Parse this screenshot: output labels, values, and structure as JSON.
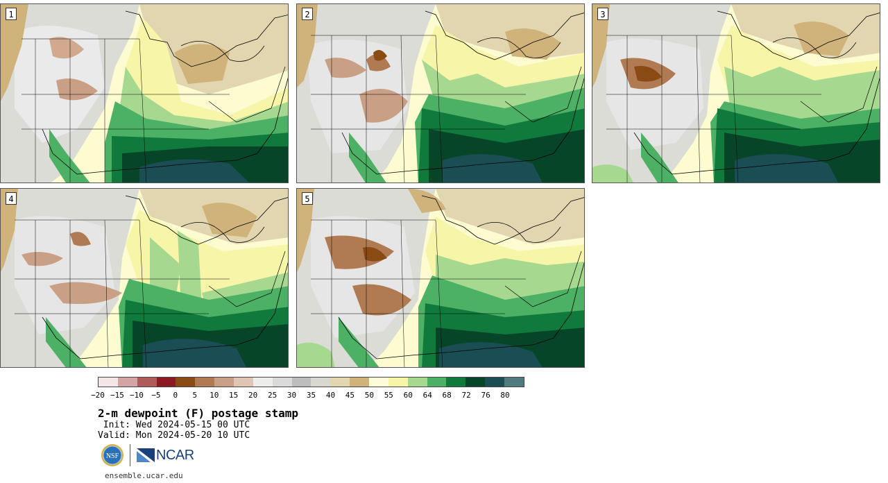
{
  "panels": [
    {
      "label": "1"
    },
    {
      "label": "2"
    },
    {
      "label": "3"
    },
    {
      "label": "4"
    },
    {
      "label": "5"
    }
  ],
  "legend": {
    "colors": [
      "#f4e6e6",
      "#d4a3a3",
      "#b05a5a",
      "#8c1a22",
      "#8a4a14",
      "#b07a52",
      "#c9a086",
      "#e0c5b2",
      "#ededec",
      "#dadada",
      "#bdbdbd",
      "#d8d8cf",
      "#e2d6b0",
      "#cfb37a",
      "#fefbd9",
      "#f7f5a8",
      "#a6d98f",
      "#4cb065",
      "#0f7a3c",
      "#074529",
      "#1b4d55",
      "#4e7b7d"
    ],
    "tick_labels": [
      "−20",
      "−15",
      "−10",
      "−5",
      "0",
      "5",
      "10",
      "15",
      "20",
      "25",
      "30",
      "35",
      "40",
      "45",
      "50",
      "55",
      "60",
      "64",
      "68",
      "72",
      "76",
      "80"
    ]
  },
  "title": "2-m dewpoint (F) postage stamp",
  "init": " Init: Wed 2024-05-15 00 UTC",
  "valid": "Valid: Mon 2024-05-20 10 UTC",
  "logos": {
    "nsf_text": "NSF",
    "ncar_text": "NCAR"
  },
  "website": "ensemble.ucar.edu"
}
